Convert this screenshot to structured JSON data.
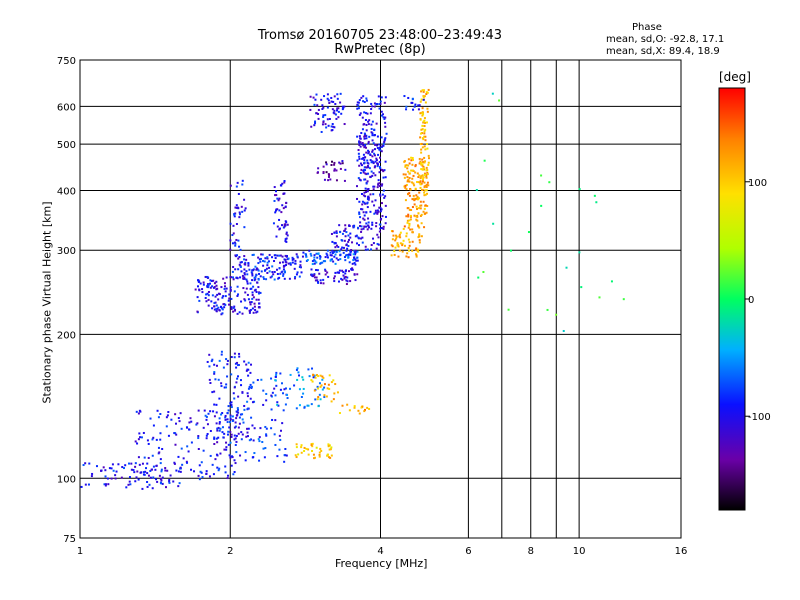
{
  "header": {
    "title_line1": "Tromsø 20160705 23:48:00–23:49:43",
    "title_line2": "RwPretec (8p)"
  },
  "phase_box": {
    "heading": "Phase",
    "line_o": "mean, sd,O: -92.8, 17.1",
    "line_x": "mean, sd,X:  89.4, 18.9"
  },
  "chart_data": {
    "type": "scatter",
    "xlabel": "Frequency [MHz]",
    "ylabel": "Stationary phase Virtual Height [km]",
    "xscale": "log",
    "yscale": "log",
    "xlim": [
      1,
      16
    ],
    "ylim": [
      75,
      750
    ],
    "x_ticks": [
      1,
      2,
      4,
      6,
      8,
      10,
      16
    ],
    "x_tick_labels": [
      "1",
      "2",
      "4",
      "6",
      "8",
      "10",
      "16"
    ],
    "x_grid": [
      2,
      4,
      6,
      7,
      8,
      9,
      10
    ],
    "y_ticks": [
      75,
      100,
      200,
      300,
      400,
      500,
      600,
      750
    ],
    "y_tick_labels": [
      "75",
      "100",
      "200",
      "300",
      "400",
      "500",
      "600",
      "750"
    ],
    "y_grid": [
      100,
      200,
      300,
      400,
      500,
      600
    ],
    "grid": true,
    "colorbar": {
      "label": "[deg]",
      "range": [
        -180,
        180
      ],
      "ticks": [
        100,
        0,
        -100
      ],
      "tick_labels": [
        "100",
        "0",
        "-100"
      ]
    },
    "series": [
      {
        "f": [
          1.0,
          1.6
        ],
        "h": [
          95,
          108
        ],
        "phase": -95,
        "spread": 0.04,
        "n": 90
      },
      {
        "f": [
          1.3,
          2.1
        ],
        "h": [
          100,
          140
        ],
        "phase": -95,
        "spread": 0.06,
        "n": 160
      },
      {
        "f": [
          1.8,
          2.2
        ],
        "h": [
          120,
          185
        ],
        "phase": -90,
        "spread": 0.05,
        "n": 120
      },
      {
        "f": [
          2.0,
          2.6
        ],
        "h": [
          108,
          165
        ],
        "phase": -85,
        "spread": 0.05,
        "n": 90
      },
      {
        "f": [
          2.4,
          3.1
        ],
        "h": [
          140,
          170
        ],
        "phase": -60,
        "spread": 0.04,
        "n": 50
      },
      {
        "f": [
          2.7,
          3.2
        ],
        "h": [
          110,
          118
        ],
        "phase": 100,
        "spread": 0.03,
        "n": 40
      },
      {
        "f": [
          2.9,
          3.3
        ],
        "h": [
          145,
          165
        ],
        "phase": 110,
        "spread": 0.03,
        "n": 30
      },
      {
        "f": [
          3.3,
          3.8
        ],
        "h": [
          135,
          145
        ],
        "phase": 115,
        "spread": 0.02,
        "n": 15
      },
      {
        "f": [
          1.7,
          2.3
        ],
        "h": [
          220,
          265
        ],
        "phase": -100,
        "spread": 0.04,
        "n": 170
      },
      {
        "f": [
          2.1,
          2.8
        ],
        "h": [
          260,
          295
        ],
        "phase": -90,
        "spread": 0.03,
        "n": 140
      },
      {
        "f": [
          2.8,
          3.6
        ],
        "h": [
          280,
          300
        ],
        "phase": -75,
        "spread": 0.02,
        "n": 90
      },
      {
        "f": [
          2.9,
          3.6
        ],
        "h": [
          255,
          275
        ],
        "phase": -110,
        "spread": 0.02,
        "n": 60
      },
      {
        "f": [
          3.2,
          4.0
        ],
        "h": [
          300,
          340
        ],
        "phase": -100,
        "spread": 0.02,
        "n": 80
      },
      {
        "f": [
          3.6,
          4.1
        ],
        "h": [
          330,
          630
        ],
        "phase": -100,
        "spread": 0.04,
        "n": 260
      },
      {
        "f": [
          4.2,
          4.85
        ],
        "h": [
          290,
          330
        ],
        "phase": 115,
        "spread": 0.02,
        "n": 60
      },
      {
        "f": [
          4.45,
          4.95
        ],
        "h": [
          330,
          470
        ],
        "phase": 120,
        "spread": 0.03,
        "n": 150
      },
      {
        "f": [
          4.8,
          5.0
        ],
        "h": [
          400,
          650
        ],
        "phase": 110,
        "spread": 0.02,
        "n": 90
      },
      {
        "f": [
          2.0,
          2.15
        ],
        "h": [
          260,
          420
        ],
        "phase": -100,
        "spread": 0.03,
        "n": 60
      },
      {
        "f": [
          2.45,
          2.6
        ],
        "h": [
          310,
          420
        ],
        "phase": -100,
        "spread": 0.03,
        "n": 50
      },
      {
        "f": [
          2.9,
          3.4
        ],
        "h": [
          530,
          640
        ],
        "phase": -100,
        "spread": 0.03,
        "n": 70
      },
      {
        "f": [
          3.0,
          3.4
        ],
        "h": [
          420,
          460
        ],
        "phase": -130,
        "spread": 0.03,
        "n": 30
      },
      {
        "f": [
          3.6,
          4.0
        ],
        "h": [
          440,
          520
        ],
        "phase": -100,
        "spread": 0.03,
        "n": 40
      },
      {
        "f": [
          4.4,
          4.9
        ],
        "h": [
          590,
          630
        ],
        "phase": -95,
        "spread": 0.02,
        "n": 15
      },
      {
        "f": [
          6.0,
          13.0
        ],
        "h": [
          180,
          650
        ],
        "phase": 0,
        "spread": 0.1,
        "n": 25
      }
    ]
  }
}
